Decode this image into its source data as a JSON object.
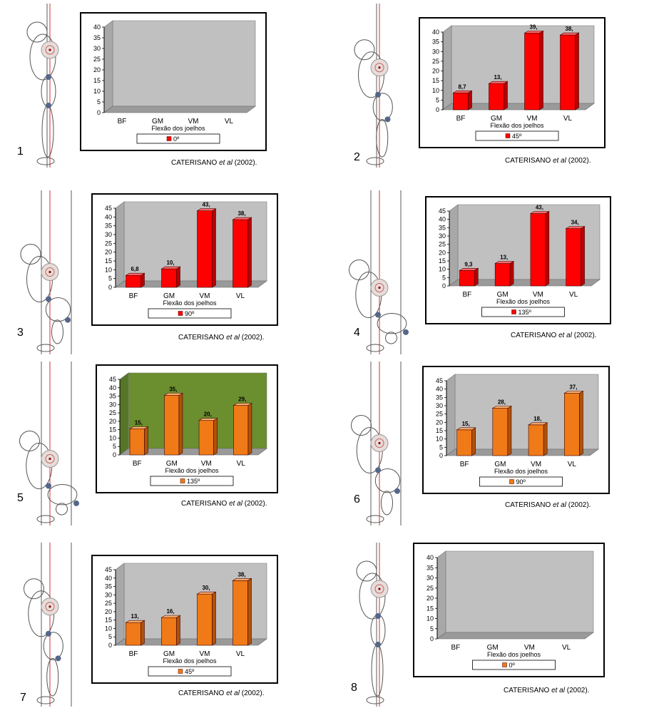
{
  "figure_labels": [
    "1",
    "2",
    "3",
    "4",
    "5",
    "6",
    "7",
    "8"
  ],
  "citation": {
    "author": "CATERISANO",
    "etal": "et al",
    "year": "(2002)."
  },
  "chart_data": [
    {
      "type": "bar",
      "panel_label": "1",
      "color_scheme": "red",
      "background": "#c0c0c0",
      "categories": [
        "BF",
        "GM",
        "VM",
        "VL"
      ],
      "values": [
        0,
        0,
        0,
        0
      ],
      "value_labels": [
        "",
        "",
        "",
        ""
      ],
      "ylim": [
        0,
        40
      ],
      "yticks": [
        0,
        5,
        10,
        15,
        20,
        25,
        30,
        35,
        40
      ],
      "xlabel": "Flexão dos joelhos",
      "legend": "0º",
      "title": ""
    },
    {
      "type": "bar",
      "panel_label": "2",
      "color_scheme": "red",
      "background": "#c0c0c0",
      "categories": [
        "BF",
        "GM",
        "VM",
        "VL"
      ],
      "values": [
        8.7,
        13.5,
        39.5,
        38.5
      ],
      "value_labels": [
        "8,7",
        "13,",
        "39,",
        "38,"
      ],
      "ylim": [
        0,
        40
      ],
      "yticks": [
        0,
        5,
        10,
        15,
        20,
        25,
        30,
        35,
        40
      ],
      "xlabel": "Flexão dos joelhos",
      "legend": "45º",
      "title": ""
    },
    {
      "type": "bar",
      "panel_label": "3",
      "color_scheme": "red",
      "background": "#c0c0c0",
      "categories": [
        "BF",
        "GM",
        "VM",
        "VL"
      ],
      "values": [
        6.8,
        10.5,
        43.5,
        38.5
      ],
      "value_labels": [
        "6,8",
        "10,",
        "43,",
        "38,"
      ],
      "ylim": [
        0,
        45
      ],
      "yticks": [
        0,
        5,
        10,
        15,
        20,
        25,
        30,
        35,
        40,
        45
      ],
      "xlabel": "Flexão dos joelhos",
      "legend": "90º",
      "title": ""
    },
    {
      "type": "bar",
      "panel_label": "4",
      "color_scheme": "red",
      "background": "#c0c0c0",
      "categories": [
        "BF",
        "GM",
        "VM",
        "VL"
      ],
      "values": [
        9.3,
        13.5,
        43.5,
        34.5
      ],
      "value_labels": [
        "9,3",
        "13,",
        "43,",
        "34,"
      ],
      "ylim": [
        0,
        45
      ],
      "yticks": [
        0,
        5,
        10,
        15,
        20,
        25,
        30,
        35,
        40,
        45
      ],
      "xlabel": "Flexão dos joelhos",
      "legend": "135º",
      "title": ""
    },
    {
      "type": "bar",
      "panel_label": "5",
      "color_scheme": "orange",
      "background": "#6b8e2f",
      "categories": [
        "BF",
        "GM",
        "VM",
        "VL"
      ],
      "values": [
        15.5,
        35.5,
        20.5,
        29.5
      ],
      "value_labels": [
        "15,",
        "35,",
        "20,",
        "29,"
      ],
      "ylim": [
        0,
        45
      ],
      "yticks": [
        0,
        5,
        10,
        15,
        20,
        25,
        30,
        35,
        40,
        45
      ],
      "xlabel": "Flexão dos joelhos",
      "legend": "135º",
      "title": ""
    },
    {
      "type": "bar",
      "panel_label": "6",
      "color_scheme": "orange",
      "background": "#c0c0c0",
      "categories": [
        "BF",
        "GM",
        "VM",
        "VL"
      ],
      "values": [
        15.5,
        28.5,
        18.5,
        37.5
      ],
      "value_labels": [
        "15,",
        "28,",
        "18,",
        "37,"
      ],
      "ylim": [
        0,
        45
      ],
      "yticks": [
        0,
        5,
        10,
        15,
        20,
        25,
        30,
        35,
        40,
        45
      ],
      "xlabel": "Flexão dos joelhos",
      "legend": "90º",
      "title": ""
    },
    {
      "type": "bar",
      "panel_label": "7",
      "color_scheme": "orange",
      "background": "#c0c0c0",
      "categories": [
        "BF",
        "GM",
        "VM",
        "VL"
      ],
      "values": [
        13.5,
        16.5,
        30.5,
        38.5
      ],
      "value_labels": [
        "13,",
        "16,",
        "30,",
        "38,"
      ],
      "ylim": [
        0,
        45
      ],
      "yticks": [
        0,
        5,
        10,
        15,
        20,
        25,
        30,
        35,
        40,
        45
      ],
      "xlabel": "Flexão dos joelhos",
      "legend": "45º",
      "title": ""
    },
    {
      "type": "bar",
      "panel_label": "8",
      "color_scheme": "orange",
      "background": "#c0c0c0",
      "categories": [
        "BF",
        "GM",
        "VM",
        "VL"
      ],
      "values": [
        0,
        0,
        0,
        0
      ],
      "value_labels": [
        "",
        "",
        "",
        ""
      ],
      "ylim": [
        0,
        40
      ],
      "yticks": [
        0,
        5,
        10,
        15,
        20,
        25,
        30,
        35,
        40
      ],
      "xlabel": "Flexão dos joelhos",
      "legend": "0º",
      "title": ""
    }
  ]
}
